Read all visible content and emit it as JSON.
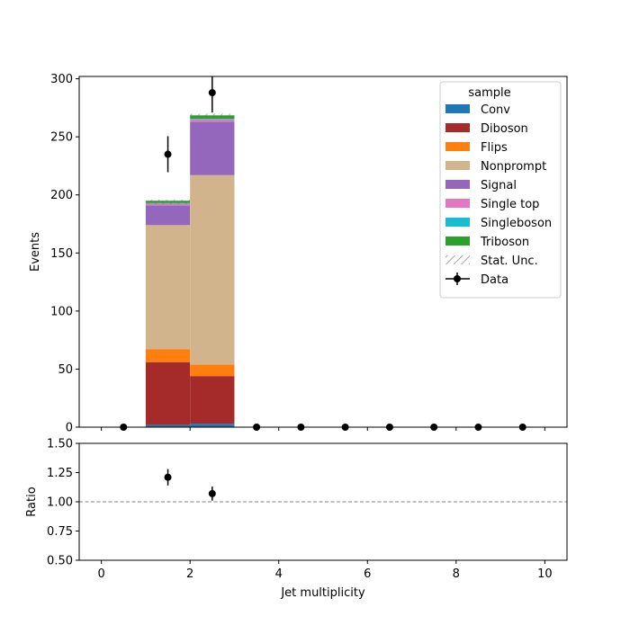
{
  "chart_data": [
    {
      "panel": "main",
      "type": "bar",
      "stacked": true,
      "xlabel": "",
      "ylabel": "Events",
      "xlim": [
        -0.5,
        10.5
      ],
      "ylim": [
        0,
        302
      ],
      "yticks": [
        0,
        50,
        100,
        150,
        200,
        250,
        300
      ],
      "xtick_values": [
        0,
        2,
        4,
        6,
        8,
        10
      ],
      "bin_edges": [
        1,
        2,
        3
      ],
      "series": [
        {
          "name": "Conv",
          "color": "#1f77b4",
          "values": [
            2,
            3
          ]
        },
        {
          "name": "Diboson",
          "color": "#a52a2a",
          "values": [
            54,
            41
          ]
        },
        {
          "name": "Flips",
          "color": "#ff7f0e",
          "values": [
            11,
            10
          ]
        },
        {
          "name": "Nonprompt",
          "color": "#d2b48c",
          "values": [
            107,
            163
          ]
        },
        {
          "name": "Signal",
          "color": "#9467bd",
          "values": [
            17,
            46
          ]
        },
        {
          "name": "Single top",
          "color": "#e377c2",
          "values": [
            1.5,
            2
          ]
        },
        {
          "name": "Singleboson",
          "color": "#17becf",
          "values": [
            0.5,
            0.5
          ]
        },
        {
          "name": "Triboson",
          "color": "#2ca02c",
          "values": [
            2,
            3
          ]
        }
      ],
      "stat_unc": {
        "name": "Stat. Unc.",
        "bins": [
          [
            192,
            196
          ],
          [
            267,
            270
          ]
        ]
      },
      "data": {
        "name": "Data",
        "x": [
          0.5,
          1.5,
          2.5,
          3.5,
          4.5,
          5.5,
          6.5,
          7.5,
          8.5,
          9.5
        ],
        "y": [
          0,
          235,
          288,
          0,
          0,
          0,
          0,
          0,
          0,
          0
        ],
        "yerr": [
          0,
          15.5,
          17,
          0,
          0,
          0,
          0,
          0,
          0,
          0
        ]
      },
      "legend": {
        "title": "sample",
        "position": "top-right"
      }
    },
    {
      "panel": "ratio",
      "type": "scatter",
      "xlabel": "Jet multiplicity",
      "ylabel": "Ratio",
      "xlim": [
        -0.5,
        10.5
      ],
      "ylim": [
        0.5,
        1.5
      ],
      "yticks": [
        "0.50",
        "0.75",
        "1.00",
        "1.25",
        "1.50"
      ],
      "ytick_values": [
        0.5,
        0.75,
        1.0,
        1.25,
        1.5
      ],
      "xticks": [
        "0",
        "2",
        "4",
        "6",
        "8",
        "10"
      ],
      "xtick_values": [
        0,
        2,
        4,
        6,
        8,
        10
      ],
      "reference_line": 1.0,
      "x": [
        1.5,
        2.5
      ],
      "y": [
        1.21,
        1.07
      ],
      "yerr": [
        0.07,
        0.06
      ]
    }
  ]
}
